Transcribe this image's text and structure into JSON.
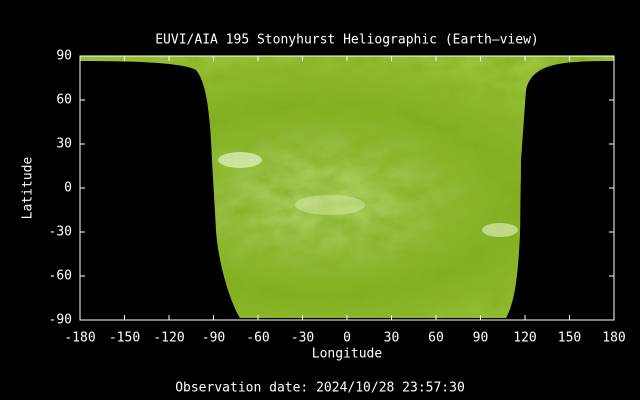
{
  "chart_data": {
    "type": "image",
    "title": "EUVI/AIA 195 Stonyhurst Heliographic (Earth—view)",
    "x_label": "Longitude",
    "y_label": "Latitude",
    "xlim": [
      -180,
      180
    ],
    "ylim": [
      -90,
      90
    ],
    "xticks": [
      -180,
      -150,
      -120,
      -90,
      -60,
      -30,
      0,
      30,
      60,
      90,
      120,
      150,
      180
    ],
    "yticks": [
      -90,
      -60,
      -30,
      0,
      30,
      60,
      90
    ]
  },
  "footer": "Observation date: 2024/10/28 23:57:30"
}
